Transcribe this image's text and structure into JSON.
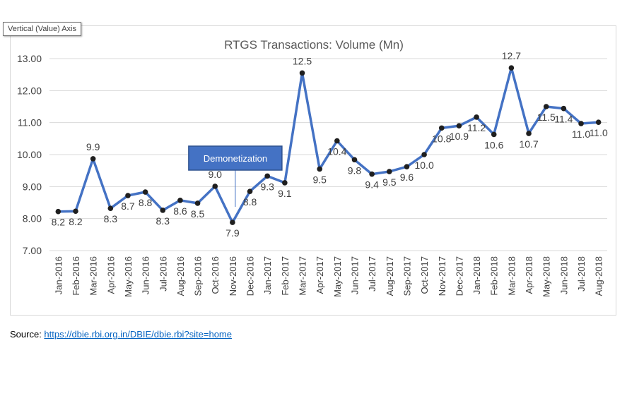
{
  "tooltip": {
    "text": "Vertical (Value) Axis"
  },
  "source": {
    "label": "Source: ",
    "link_text": "https://dbie.rbi.org.in/DBIE/dbie.rbi?site=home"
  },
  "colors": {
    "line": "#4472c4",
    "marker": "#1f1f1f",
    "grid": "#d9d9d9",
    "annotation_fill": "#4472c4",
    "annotation_border": "#2f528f",
    "text": "#404040"
  },
  "chart_data": {
    "type": "line",
    "title": "RTGS Transactions: Volume (Mn)",
    "xlabel": "",
    "ylabel": "",
    "ylim": [
      7.0,
      13.0
    ],
    "yticks": [
      "7.00",
      "8.00",
      "9.00",
      "10.00",
      "11.00",
      "12.00",
      "13.00"
    ],
    "grid": true,
    "legend": "none",
    "categories": [
      "Jan-2016",
      "Feb-2016",
      "Mar-2016",
      "Apr-2016",
      "May-2016",
      "Jun-2016",
      "Jul-2016",
      "Aug-2016",
      "Sep-2016",
      "Oct-2016",
      "Nov-2016",
      "Dec-2016",
      "Jan-2017",
      "Feb-2017",
      "Mar-2017",
      "Apr-2017",
      "May-2017",
      "Jun-2017",
      "Jul-2017",
      "Aug-2017",
      "Sep-2017",
      "Oct-2017",
      "Nov-2017",
      "Dec-2017",
      "Jan-2018",
      "Feb-2018",
      "Mar-2018",
      "Apr-2018",
      "May-2018",
      "Jun-2018",
      "Jul-2018",
      "Aug-2018"
    ],
    "values": [
      8.22,
      8.23,
      9.87,
      8.32,
      8.72,
      8.83,
      8.26,
      8.57,
      8.48,
      9.01,
      7.88,
      8.85,
      9.33,
      9.12,
      12.55,
      9.55,
      10.43,
      9.84,
      9.39,
      9.47,
      9.62,
      10.0,
      10.83,
      10.9,
      11.17,
      10.63,
      12.71,
      10.66,
      11.5,
      11.44,
      10.97,
      11.01
    ],
    "data_labels": [
      "8.2",
      "8.2",
      "9.9",
      "8.3",
      "8.7",
      "8.8",
      "8.3",
      "8.6",
      "8.5",
      "9.0",
      "7.9",
      "8.8",
      "9.3",
      "9.1",
      "12.5",
      "9.5",
      "10.4",
      "9.8",
      "9.4",
      "9.5",
      "9.6",
      "10.0",
      "10.8",
      "10.9",
      "11.2",
      "10.6",
      "12.7",
      "10.7",
      "11.5",
      "11.4",
      "11.0",
      "11.0"
    ],
    "annotations": [
      {
        "text": "Demonetization",
        "category": "Nov-2016"
      }
    ]
  }
}
